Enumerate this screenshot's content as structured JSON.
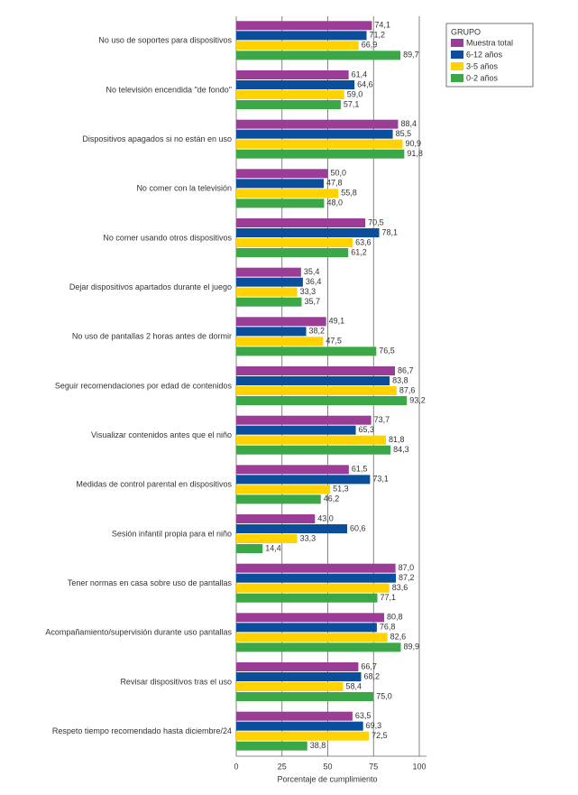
{
  "chart_data": {
    "type": "bar",
    "orientation": "horizontal",
    "xlabel": "Porcentaje de cumplimiento",
    "legend_title": "GRUPO",
    "legend": "top-right",
    "categories": [
      "No uso de soportes para dispositivos",
      "No televisión encendida \"de fondo\"",
      "Dispositivos apagados si no están en uso",
      "No comer con la televisión",
      "No comer usando otros dispositivos",
      "Dejar dispositivos apartados durante el juego",
      "No uso de pantallas 2 horas antes de dormir",
      "Seguir recomendaciones por edad de contenidos",
      "Visualizar contenidos antes que el niño",
      "Medidas de control parental en dispositivos",
      "Sesión infantil propia para el niño",
      "Tener normas en casa sobre uso de pantallas",
      "Acompañamiento/supervisión durante uso pantallas",
      "Revisar dispositivos tras el uso",
      "Respeto tiempo recomendado hasta diciembre/24"
    ],
    "series": [
      {
        "name": "Muestra total",
        "color": "#9b3d96",
        "values": [
          74.1,
          61.4,
          88.4,
          50.0,
          70.5,
          35.4,
          49.1,
          86.7,
          73.7,
          61.5,
          43.0,
          87.0,
          80.8,
          66.7,
          63.5
        ],
        "value_labels": [
          "74,1",
          "61,4",
          "88,4",
          "50,0",
          "70,5",
          "35,4",
          "49,1",
          "86,7",
          "73,7",
          "61,5",
          "43,0",
          "87,0",
          "80,8",
          "66,7",
          "63,5"
        ]
      },
      {
        "name": "6-12 años",
        "color": "#0b4f9c",
        "values": [
          71.2,
          64.6,
          85.5,
          47.8,
          78.1,
          36.4,
          38.2,
          83.8,
          65.3,
          73.1,
          60.6,
          87.2,
          76.8,
          68.2,
          69.3
        ],
        "value_labels": [
          "71,2",
          "64,6",
          "85,5",
          "47,8",
          "78,1",
          "36,4",
          "38,2",
          "83,8",
          "65,3",
          "73,1",
          "60,6",
          "87,2",
          "76,8",
          "68,2",
          "69,3"
        ]
      },
      {
        "name": "3-5 años",
        "color": "#ffd200",
        "values": [
          66.9,
          59.0,
          90.9,
          55.8,
          63.6,
          33.3,
          47.5,
          87.6,
          81.8,
          51.3,
          33.3,
          83.6,
          82.6,
          58.4,
          72.5
        ],
        "value_labels": [
          "66,9",
          "59,0",
          "90,9",
          "55,8",
          "63,6",
          "33,3",
          "47,5",
          "87,6",
          "81,8",
          "51,3",
          "33,3",
          "83,6",
          "82,6",
          "58,4",
          "72,5"
        ]
      },
      {
        "name": "0-2 años",
        "color": "#3aa847",
        "values": [
          89.7,
          57.1,
          91.8,
          48.0,
          61.2,
          35.7,
          76.5,
          93.2,
          84.3,
          46.2,
          14.4,
          77.1,
          89.9,
          75.0,
          38.8
        ],
        "value_labels": [
          "89,7",
          "57,1",
          "91,8",
          "48,0",
          "61,2",
          "35,7",
          "76,5",
          "93,2",
          "84,3",
          "46,2",
          "14,4",
          "77,1",
          "89,9",
          "75,0",
          "38,8"
        ]
      }
    ],
    "xlim": [
      0,
      100
    ],
    "xticks": [
      0,
      25,
      50,
      75,
      100
    ],
    "grid": true
  }
}
